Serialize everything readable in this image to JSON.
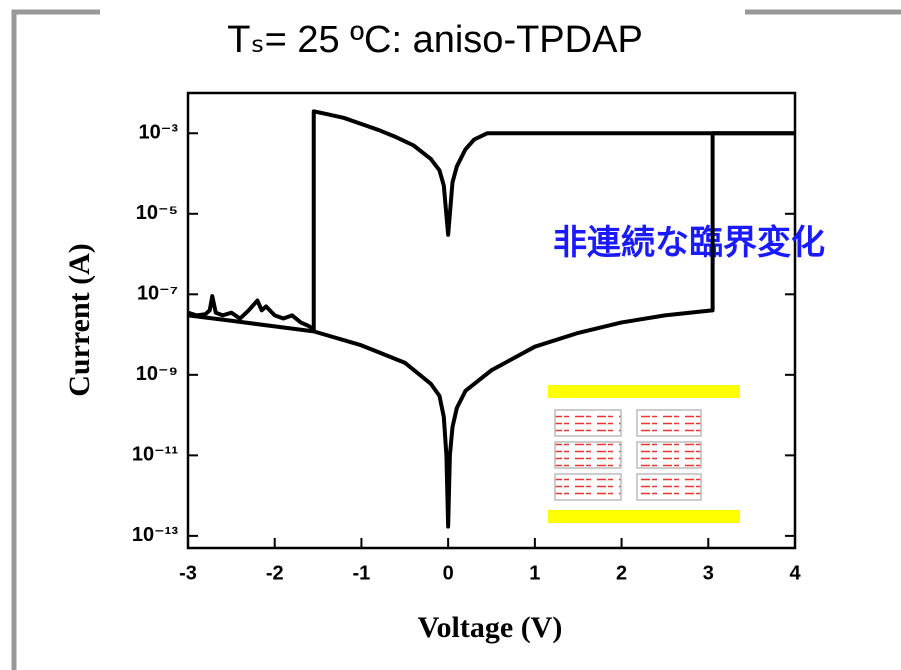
{
  "chart_data": {
    "type": "line",
    "title": "Tₛ= 25 ºC: aniso-TPDAP",
    "xlabel": "Voltage (V)",
    "ylabel": "Current (A)",
    "annotation": "非連続な臨界変化",
    "xlim": [
      -3,
      4
    ],
    "xticks": [
      -3,
      -2,
      -1,
      0,
      1,
      2,
      3,
      4
    ],
    "ylim": [
      5e-14,
      0.01
    ],
    "yscale": "log",
    "yticks": [
      {
        "value": 0.001,
        "label": "10⁻³"
      },
      {
        "value": 1e-05,
        "label": "10⁻⁵"
      },
      {
        "value": 1e-07,
        "label": "10⁻⁷"
      },
      {
        "value": 1e-09,
        "label": "10⁻⁹"
      },
      {
        "value": 1e-11,
        "label": "10⁻¹¹"
      },
      {
        "value": 1e-13,
        "label": "10⁻¹³"
      }
    ],
    "series": [
      {
        "color": "#000000",
        "x": [
          -3,
          -2.9,
          -2.8,
          -2.75,
          -2.72,
          -2.68,
          -2.6,
          -2.5,
          -2.4,
          -2.3,
          -2.2,
          -2.15,
          -2.1,
          -2,
          -1.9,
          -1.8,
          -1.7,
          -1.6,
          -1.55,
          -1.55,
          -1.4,
          -1.2,
          -1,
          -0.8,
          -0.6,
          -0.4,
          -0.2,
          -0.1,
          -0.05,
          0,
          0.05,
          0.1,
          0.2,
          0.3,
          0.45,
          1,
          2,
          3,
          4
        ],
        "values": [
          3.5e-08,
          3e-08,
          3.2e-08,
          4e-08,
          9e-08,
          3.5e-08,
          3e-08,
          3.5e-08,
          2.5e-08,
          4e-08,
          7e-08,
          4e-08,
          5e-08,
          3e-08,
          2.5e-08,
          3e-08,
          2e-08,
          1.6e-08,
          1.3e-08,
          0.0035,
          0.003,
          0.0024,
          0.0017,
          0.0012,
          0.0008,
          0.0005,
          0.00023,
          0.00012,
          5e-05,
          3e-06,
          6e-05,
          0.00015,
          0.0004,
          0.0007,
          0.001,
          0.001,
          0.001,
          0.001,
          0.001
        ]
      },
      {
        "color": "#000000",
        "x": [
          -3,
          -2.5,
          -2,
          -1.55,
          -1,
          -0.5,
          -0.2,
          -0.1,
          -0.05,
          -0.02,
          0,
          0.02,
          0.05,
          0.1,
          0.2,
          0.5,
          1,
          1.5,
          2,
          2.5,
          3,
          3.05,
          3.05,
          4
        ],
        "values": [
          3e-08,
          2.2e-08,
          1.6e-08,
          1.2e-08,
          5.4e-09,
          2e-09,
          6e-10,
          3e-10,
          9e-11,
          1e-11,
          1.7e-13,
          1e-11,
          5e-11,
          1.5e-10,
          4e-10,
          1.3e-09,
          5e-09,
          1.1e-08,
          2e-08,
          3e-08,
          3.9e-08,
          4e-08,
          0.001,
          0.001
        ]
      }
    ]
  }
}
